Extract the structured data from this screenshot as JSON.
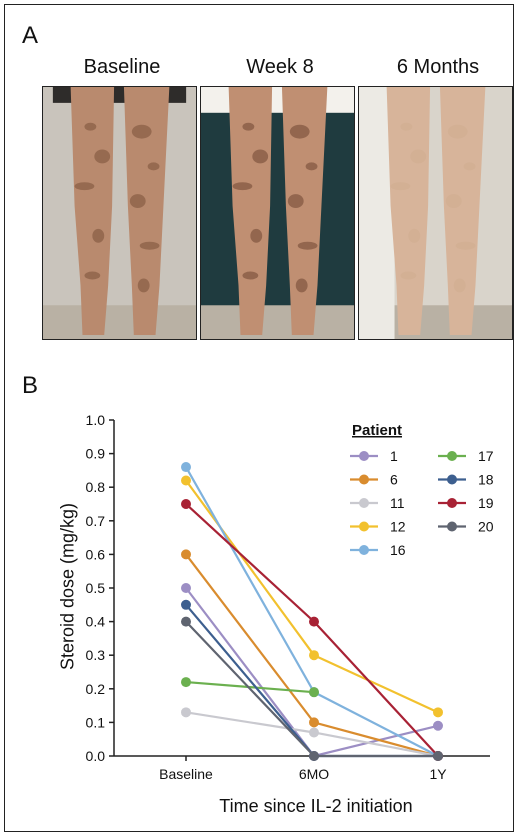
{
  "panel_a": {
    "letter": "A",
    "photos": [
      {
        "label": "Baseline",
        "skin": "#b98a6e",
        "mottle": "#7a5038",
        "bg": "#c9c4bc"
      },
      {
        "label": "Week 8",
        "skin": "#c08f72",
        "mottle": "#6e4632",
        "bg": "#1f3b3f"
      },
      {
        "label": "6 Months",
        "skin": "#d7b49a",
        "mottle": "#c8a285",
        "bg": "#d9d4cb"
      }
    ]
  },
  "panel_b": {
    "letter": "B"
  },
  "chart_data": {
    "type": "line",
    "xlabel": "Time since IL-2 initiation",
    "ylabel": "Steroid dose (mg/kg)",
    "categories": [
      "Baseline",
      "6MO",
      "1Y"
    ],
    "ylim": [
      0,
      1.0
    ],
    "yticks": [
      "0.0",
      "0.1",
      "0.2",
      "0.3",
      "0.4",
      "0.5",
      "0.6",
      "0.7",
      "0.8",
      "0.9",
      "1.0"
    ],
    "legend_title": "Patient",
    "legend_position": "top-right",
    "grid": false,
    "series": [
      {
        "name": "1",
        "color": "#9c8ec4",
        "values": [
          0.5,
          0.0,
          0.09
        ]
      },
      {
        "name": "6",
        "color": "#d98c2e",
        "values": [
          0.6,
          0.1,
          0.0
        ]
      },
      {
        "name": "11",
        "color": "#c9c9cf",
        "values": [
          0.13,
          0.07,
          0.0
        ]
      },
      {
        "name": "12",
        "color": "#f2c12e",
        "values": [
          0.82,
          0.3,
          0.13
        ]
      },
      {
        "name": "16",
        "color": "#7fb2dd",
        "values": [
          0.86,
          0.19,
          0.0
        ]
      },
      {
        "name": "17",
        "color": "#6bb04f",
        "values": [
          0.22,
          0.19,
          null
        ]
      },
      {
        "name": "18",
        "color": "#3d5f8f",
        "values": [
          0.45,
          0.0,
          0.0
        ]
      },
      {
        "name": "19",
        "color": "#a82235",
        "values": [
          0.75,
          0.4,
          0.0
        ]
      },
      {
        "name": "20",
        "color": "#5f6470",
        "values": [
          0.4,
          0.0,
          0.0
        ]
      }
    ]
  }
}
